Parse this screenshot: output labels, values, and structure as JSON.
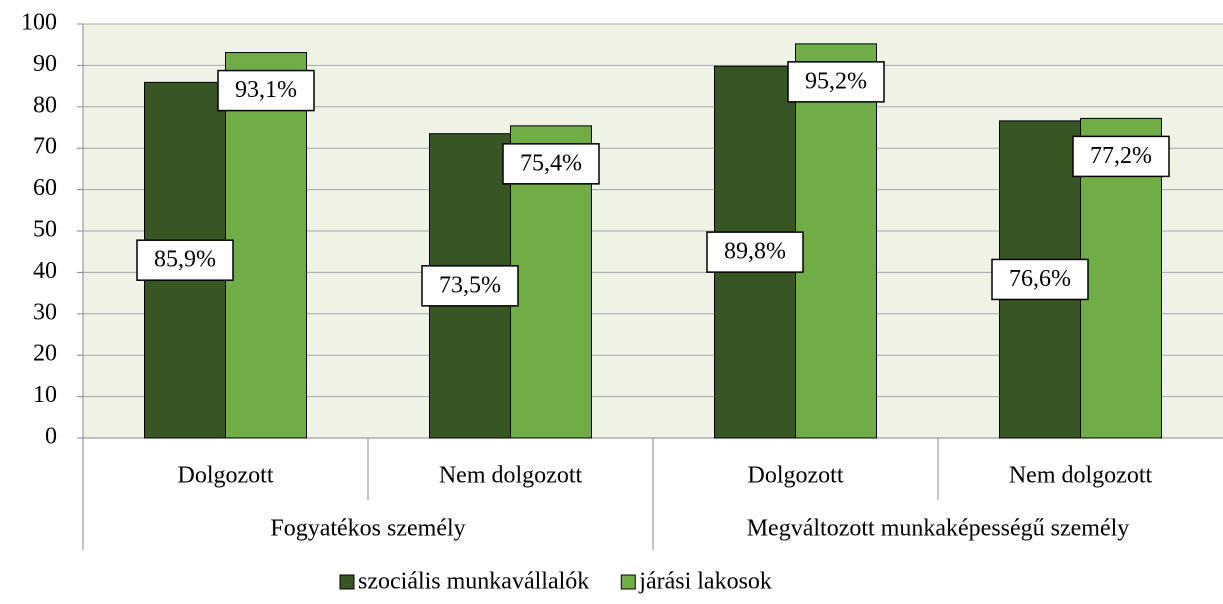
{
  "chart_data": {
    "type": "bar",
    "categories": [
      "Dolgozott",
      "Nem dolgozott",
      "Dolgozott",
      "Nem dolgozott"
    ],
    "groups": [
      {
        "label": "Fogyatékos személy",
        "span": 2
      },
      {
        "label": "Megváltozott munkaképességű személy",
        "span": 2
      }
    ],
    "series": [
      {
        "name": "szociális munkavállalók",
        "color": "#375623",
        "values": [
          85.9,
          73.5,
          89.8,
          76.6
        ],
        "value_labels": [
          "85,9%",
          "73,5%",
          "89,8%",
          "76,6%"
        ]
      },
      {
        "name": "járási lakosok",
        "color": "#70ad47",
        "values": [
          93.1,
          75.4,
          95.2,
          77.2
        ],
        "value_labels": [
          "93,1%",
          "75,4%",
          "95,2%",
          "77,2%"
        ]
      }
    ],
    "ylim": [
      0,
      100
    ],
    "yticks": [
      0,
      10,
      20,
      30,
      40,
      50,
      60,
      70,
      80,
      90,
      100
    ],
    "grid": true
  }
}
